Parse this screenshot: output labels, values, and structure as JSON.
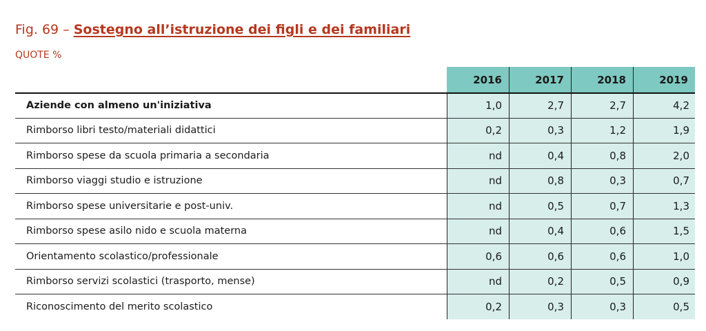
{
  "figure": {
    "number": "Fig. 69 –",
    "title": "Sostegno all’istruzione dei figli e dei familiari",
    "subtitle": "QUOTE %"
  },
  "table": {
    "columns": [
      "2016",
      "2017",
      "2018",
      "2019"
    ],
    "rows": [
      {
        "label": "Aziende con almeno un'iniziativa",
        "values": [
          "1,0",
          "2,7",
          "2,7",
          "4,2"
        ],
        "bold": true
      },
      {
        "label": "Rimborso libri testo/materiali didattici",
        "values": [
          "0,2",
          "0,3",
          "1,2",
          "1,9"
        ]
      },
      {
        "label": "Rimborso spese da scuola primaria a secondaria",
        "values": [
          "nd",
          "0,4",
          "0,8",
          "2,0"
        ]
      },
      {
        "label": "Rimborso viaggi studio e istruzione",
        "values": [
          "nd",
          "0,8",
          "0,3",
          "0,7"
        ]
      },
      {
        "label": "Rimborso spese universitarie e post-univ.",
        "values": [
          "nd",
          "0,5",
          "0,7",
          "1,3"
        ]
      },
      {
        "label": "Rimborso spese asilo nido e scuola materna",
        "values": [
          "nd",
          "0,4",
          "0,6",
          "1,5"
        ]
      },
      {
        "label": "Orientamento scolastico/professionale",
        "values": [
          "0,6",
          "0,6",
          "0,6",
          "1,0"
        ]
      },
      {
        "label": "Rimborso servizi scolastici (trasporto, mense)",
        "values": [
          "nd",
          "0,2",
          "0,5",
          "0,9"
        ]
      },
      {
        "label": "Riconoscimento del merito scolastico",
        "values": [
          "0,2",
          "0,3",
          "0,3",
          "0,5"
        ]
      }
    ]
  },
  "colors": {
    "title": "#b5381f",
    "header_fill": "#7ec9c1",
    "cell_fill": "#d7eeeb"
  }
}
